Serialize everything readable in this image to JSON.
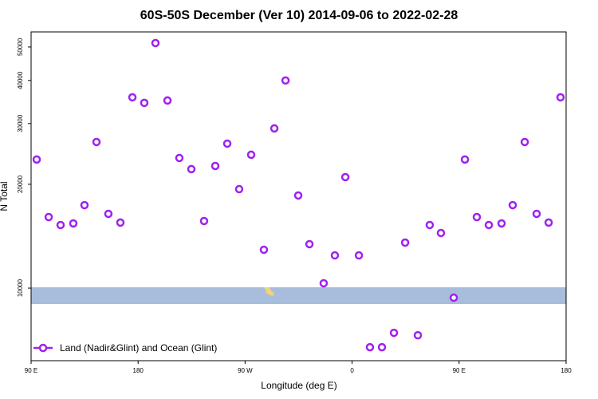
{
  "chart_data": {
    "type": "scatter",
    "title": "60S-50S December (Ver 10)   2014-09-06 to 2022-02-28",
    "x_label": "Longitude (deg E)",
    "y_label": "N Total",
    "log_y": true,
    "legend": "bottom-left",
    "xlim": [
      90,
      540
    ],
    "ylim": [
      6160,
      55300
    ],
    "xticks": [
      {
        "value": 90,
        "label": "90 E"
      },
      180,
      {
        "value": 270,
        "label": "90 W"
      },
      {
        "value": 360,
        "label": "0"
      },
      {
        "value": 450,
        "label": "90 E"
      },
      {
        "value": 540,
        "label": "180"
      }
    ],
    "yticks": [
      10000,
      20000,
      30000,
      40000,
      50000
    ],
    "x": [
      94.7,
      104.8,
      114.8,
      125.5,
      134.9,
      145,
      155,
      165.1,
      175.2,
      185.2,
      194.6,
      204.7,
      214.7,
      224.8,
      235.5,
      244.9,
      255,
      265,
      275.1,
      285.8,
      294.6,
      304,
      314.7,
      324.1,
      336.1,
      345.5,
      354.3,
      365.7,
      375,
      385.1,
      395.2,
      404.6,
      415.3,
      425.3,
      434.7,
      445.5,
      454.9,
      464.9,
      475,
      485.7,
      495.1,
      505.2,
      515.2,
      525.3,
      535.3
    ],
    "series": [
      {
        "name": "Land (Nadir&Glint) and Ocean (Glint)",
        "color": "#a020f0",
        "values": [
          23600,
          16070,
          15240,
          15400,
          17400,
          26520,
          16420,
          15490,
          35740,
          34440,
          51340,
          34990,
          23840,
          22130,
          15650,
          22600,
          26240,
          19360,
          24360,
          12920,
          29040,
          39990,
          18560,
          13410,
          10330,
          12440,
          20980,
          12440,
          6740,
          6740,
          7420,
          13550,
          7300,
          15240,
          14450,
          9380,
          23600,
          16070,
          15240,
          15400,
          17400,
          26520,
          16420,
          15490,
          35740
        ]
      }
    ]
  }
}
